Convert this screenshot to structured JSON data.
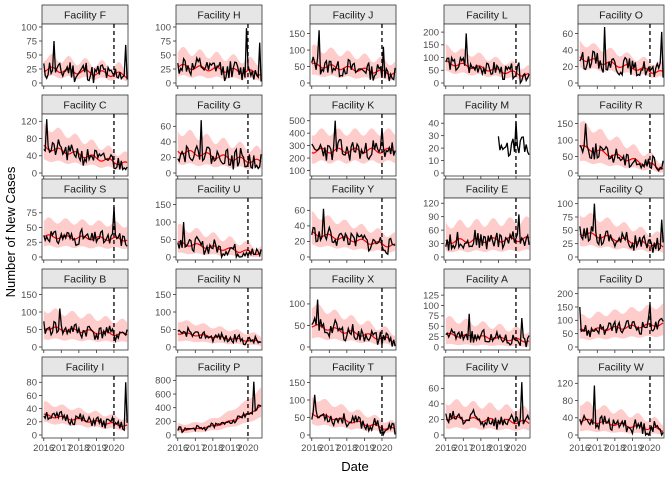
{
  "chart_data": {
    "type": "line",
    "layout": "facet grid, 5 rows x 5 columns",
    "xlabel": "Date",
    "ylabel": "Number of New Cases",
    "x_ticks": [
      "2016",
      "2017",
      "2018",
      "2019",
      "2020"
    ],
    "x_tick_labels_rendered": [
      "2016",
      "2017",
      "2018",
      "2019",
      "2020"
    ],
    "x_range": [
      2015.9,
      2020.8
    ],
    "intervention_date": 2020.0,
    "grid": false,
    "series_styles": {
      "observed": "#000000",
      "predicted": "#ff0000",
      "prediction_interval": "#ffcccc",
      "intervention_line": "dashed black"
    },
    "facets": [
      {
        "name": "Facility F",
        "yticks": [
          0,
          25,
          50,
          75,
          100
        ],
        "ylim": [
          0,
          100
        ],
        "level": 25,
        "amp": 18,
        "pred_end": 14,
        "band": 0.75,
        "seed": 11,
        "trend": -0.35,
        "spikes": [
          [
            2016.6,
            75
          ],
          [
            2020.7,
            68
          ]
        ],
        "obs_start": 2016.0
      },
      {
        "name": "Facility H",
        "yticks": [
          0,
          25,
          50,
          75,
          100
        ],
        "ylim": [
          0,
          100
        ],
        "level": 30,
        "amp": 16,
        "pred_end": 18,
        "band": 0.9,
        "seed": 12,
        "trend": -0.2,
        "spikes": [
          [
            2019.95,
            98
          ],
          [
            2020.7,
            72
          ]
        ],
        "obs_start": 2016.0
      },
      {
        "name": "Facility J",
        "yticks": [
          0,
          50,
          100,
          150
        ],
        "ylim": [
          0,
          170
        ],
        "level": 55,
        "amp": 25,
        "pred_end": 30,
        "band": 0.9,
        "seed": 13,
        "trend": -0.3,
        "spikes": [
          [
            2016.4,
            160
          ],
          [
            2020.05,
            110
          ]
        ],
        "obs_start": 2016.0
      },
      {
        "name": "Facility L",
        "yticks": [
          0,
          50,
          100,
          150,
          200
        ],
        "ylim": [
          0,
          220
        ],
        "level": 80,
        "amp": 30,
        "pred_end": 30,
        "band": 0.7,
        "seed": 14,
        "trend": -0.45,
        "spikes": [
          [
            2017.2,
            195
          ],
          [
            2020.2,
            80
          ]
        ],
        "obs_start": 2016.0
      },
      {
        "name": "Facility O",
        "yticks": [
          0,
          20,
          40,
          60
        ],
        "ylim": [
          0,
          68
        ],
        "level": 30,
        "amp": 10,
        "pred_end": 12,
        "band": 0.6,
        "seed": 15,
        "trend": -0.3,
        "spikes": [
          [
            2017.4,
            68
          ],
          [
            2020.7,
            62
          ]
        ],
        "obs_start": 2016.0
      },
      {
        "name": "Facility C",
        "yticks": [
          0,
          40,
          80,
          120
        ],
        "ylim": [
          0,
          130
        ],
        "level": 60,
        "amp": 20,
        "pred_end": 20,
        "band": 0.8,
        "seed": 21,
        "trend": -0.55,
        "spikes": [
          [
            2016.2,
            125
          ]
        ],
        "obs_start": 2016.0
      },
      {
        "name": "Facility G",
        "yticks": [
          0,
          20,
          40,
          60
        ],
        "ylim": [
          0,
          72
        ],
        "level": 28,
        "amp": 12,
        "pred_end": 14,
        "band": 0.9,
        "seed": 22,
        "trend": -0.15,
        "spikes": [
          [
            2017.3,
            68
          ]
        ],
        "obs_start": 2016.0
      },
      {
        "name": "Facility K",
        "yticks": [
          100,
          200,
          300,
          400,
          500
        ],
        "ylim": [
          80,
          530
        ],
        "level": 260,
        "amp": 80,
        "pred_end": 260,
        "band": 0.55,
        "seed": 23,
        "trend": 0.0,
        "spikes": [
          [
            2017.3,
            500
          ],
          [
            2020.0,
            440
          ]
        ],
        "obs_start": 2016.0
      },
      {
        "name": "Facility M",
        "yticks": [
          0,
          10,
          20,
          30,
          40
        ],
        "ylim": [
          0,
          45
        ],
        "level": 30,
        "amp": 8,
        "pred_end": 20,
        "band": 0.0,
        "seed": 24,
        "trend": -0.5,
        "spikes": [
          [
            2020.0,
            41
          ]
        ],
        "obs_start": 2019.0,
        "no_pred": true
      },
      {
        "name": "Facility R",
        "yticks": [
          0,
          50,
          100,
          150
        ],
        "ylim": [
          0,
          170
        ],
        "level": 80,
        "amp": 25,
        "pred_end": 15,
        "band": 0.9,
        "seed": 25,
        "trend": -0.7,
        "spikes": [
          [
            2016.3,
            150
          ]
        ],
        "obs_start": 2016.0
      },
      {
        "name": "Facility S",
        "yticks": [
          0,
          25,
          50,
          75
        ],
        "ylim": [
          0,
          95
        ],
        "level": 35,
        "amp": 12,
        "pred_end": 30,
        "band": 0.75,
        "seed": 31,
        "trend": 0.0,
        "spikes": [
          [
            2020.0,
            85
          ]
        ],
        "obs_start": 2016.0
      },
      {
        "name": "Facility U",
        "yticks": [
          0,
          50,
          100,
          150
        ],
        "ylim": [
          0,
          160
        ],
        "level": 40,
        "amp": 20,
        "pred_end": 10,
        "band": 1.1,
        "seed": 32,
        "trend": -0.6,
        "spikes": [
          [
            2016.3,
            100
          ]
        ],
        "obs_start": 2016.0
      },
      {
        "name": "Facility Y",
        "yticks": [
          0,
          20,
          40,
          60
        ],
        "ylim": [
          0,
          72
        ],
        "level": 30,
        "amp": 10,
        "pred_end": 14,
        "band": 0.8,
        "seed": 33,
        "trend": -0.35,
        "spikes": [
          [
            2016.7,
            62
          ]
        ],
        "obs_start": 2016.0
      },
      {
        "name": "Facility E",
        "yticks": [
          0,
          30,
          60,
          90,
          120
        ],
        "ylim": [
          0,
          125
        ],
        "level": 35,
        "amp": 20,
        "pred_end": 40,
        "band": 1.0,
        "seed": 34,
        "trend": 0.05,
        "spikes": [
          [
            2020.2,
            95
          ]
        ],
        "obs_start": 2016.0
      },
      {
        "name": "Facility Q",
        "yticks": [
          0,
          25,
          50,
          75,
          100
        ],
        "ylim": [
          0,
          105
        ],
        "level": 45,
        "amp": 15,
        "pred_end": 20,
        "band": 0.8,
        "seed": 35,
        "trend": -0.35,
        "spikes": [
          [
            2016.8,
            100
          ],
          [
            2020.7,
            70
          ]
        ],
        "obs_start": 2016.0
      },
      {
        "name": "Facility B",
        "yticks": [
          0,
          50,
          100,
          150
        ],
        "ylim": [
          0,
          160
        ],
        "level": 55,
        "amp": 20,
        "pred_end": 35,
        "band": 0.9,
        "seed": 41,
        "trend": -0.15,
        "spikes": [
          [
            2016.9,
            110
          ]
        ],
        "obs_start": 2016.0
      },
      {
        "name": "Facility N",
        "yticks": [
          0,
          50,
          100,
          150
        ],
        "ylim": [
          0,
          160
        ],
        "level": 40,
        "amp": 12,
        "pred_end": 15,
        "band": 0.8,
        "seed": 42,
        "trend": -0.35,
        "spikes": [
          [
            2016.6,
            55
          ]
        ],
        "obs_start": 2016.0
      },
      {
        "name": "Facility X",
        "yticks": [
          0,
          50,
          100
        ],
        "ylim": [
          0,
          130
        ],
        "level": 50,
        "amp": 18,
        "pred_end": 15,
        "band": 0.9,
        "seed": 43,
        "trend": -0.4,
        "spikes": [
          [
            2016.3,
            110
          ]
        ],
        "obs_start": 2016.0
      },
      {
        "name": "Facility A",
        "yticks": [
          0,
          25,
          50,
          75,
          100,
          125
        ],
        "ylim": [
          0,
          135
        ],
        "level": 30,
        "amp": 15,
        "pred_end": 15,
        "band": 1.2,
        "seed": 44,
        "trend": -0.2,
        "spikes": [
          [
            2017.3,
            80
          ],
          [
            2020.3,
            70
          ]
        ],
        "obs_start": 2016.0
      },
      {
        "name": "Facility D",
        "yticks": [
          0,
          50,
          100,
          150,
          200
        ],
        "ylim": [
          0,
          210
        ],
        "level": 60,
        "amp": 25,
        "pred_end": 85,
        "band": 0.8,
        "seed": 45,
        "trend": 0.2,
        "spikes": [
          [
            2016.0,
            150
          ],
          [
            2020.0,
            160
          ]
        ],
        "obs_start": 2016.0
      },
      {
        "name": "Facility I",
        "yticks": [
          0,
          20,
          40,
          60,
          80
        ],
        "ylim": [
          0,
          85
        ],
        "level": 30,
        "amp": 8,
        "pred_end": 14,
        "band": 0.55,
        "seed": 51,
        "trend": -0.3,
        "spikes": [
          [
            2020.7,
            80
          ]
        ],
        "obs_start": 2016.0
      },
      {
        "name": "Facility P",
        "yticks": [
          0,
          200,
          400,
          600,
          800
        ],
        "ylim": [
          0,
          820
        ],
        "level": 80,
        "amp": 40,
        "pred_end": 420,
        "band": 0.6,
        "seed": 52,
        "trend": 0.0,
        "spikes": [
          [
            2020.3,
            780
          ]
        ],
        "obs_start": 2016.0,
        "rising": true
      },
      {
        "name": "Facility T",
        "yticks": [
          0,
          50,
          100,
          150
        ],
        "ylim": [
          0,
          160
        ],
        "level": 60,
        "amp": 18,
        "pred_end": 15,
        "band": 0.75,
        "seed": 53,
        "trend": -0.55,
        "spikes": [
          [
            2016.2,
            115
          ]
        ],
        "obs_start": 2016.0
      },
      {
        "name": "Facility V",
        "yticks": [
          0,
          20,
          40,
          60
        ],
        "ylim": [
          0,
          72
        ],
        "level": 22,
        "amp": 10,
        "pred_end": 16,
        "band": 0.9,
        "seed": 54,
        "trend": -0.05,
        "spikes": [
          [
            2020.3,
            68
          ]
        ],
        "obs_start": 2016.0
      },
      {
        "name": "Facility W",
        "yticks": [
          0,
          40,
          80,
          120
        ],
        "ylim": [
          0,
          130
        ],
        "level": 35,
        "amp": 15,
        "pred_end": 12,
        "band": 1.1,
        "seed": 55,
        "trend": -0.4,
        "spikes": [
          [
            2016.8,
            115
          ]
        ],
        "obs_start": 2016.0
      }
    ]
  }
}
